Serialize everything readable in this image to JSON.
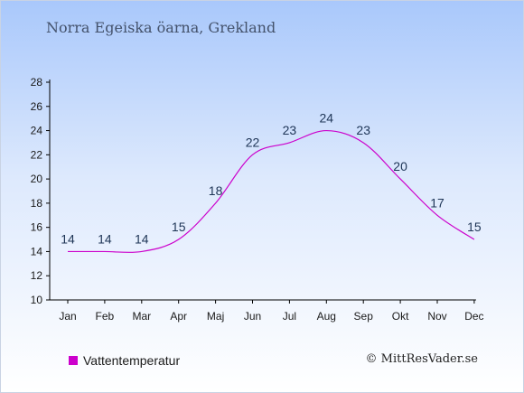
{
  "title": "Norra Egeiska öarna, Grekland",
  "legend_label": "Vattentemperatur",
  "copyright": "© MittResVader.se",
  "colors": {
    "series": "#cc00cc",
    "axis": "#000000",
    "labels": "#1e3556"
  },
  "chart_data": {
    "type": "line",
    "title": "Norra Egeiska öarna, Grekland",
    "categories": [
      "Jan",
      "Feb",
      "Mar",
      "Apr",
      "Maj",
      "Jun",
      "Jul",
      "Aug",
      "Sep",
      "Okt",
      "Nov",
      "Dec"
    ],
    "series": [
      {
        "name": "Vattentemperatur",
        "values": [
          14,
          14,
          14,
          15,
          18,
          22,
          23,
          24,
          23,
          20,
          17,
          15
        ]
      }
    ],
    "ylim": [
      10,
      28
    ],
    "yticks": [
      10,
      12,
      14,
      16,
      18,
      20,
      22,
      24,
      26,
      28
    ],
    "xlabel": "",
    "ylabel": "",
    "grid": false,
    "legend": "bottom-left"
  }
}
